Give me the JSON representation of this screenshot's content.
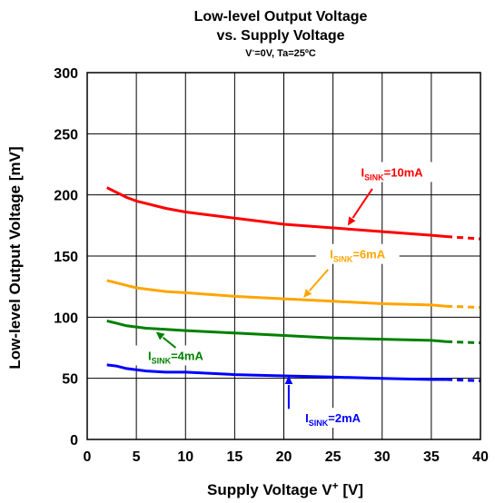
{
  "chart_data": {
    "type": "line",
    "title": "Low-level Output Voltage",
    "title_line2": "vs. Supply Voltage",
    "subtitle": {
      "base": "V",
      "sup": "-",
      "rest": "=0V, Ta=25ºC"
    },
    "xlabel": {
      "base": "Supply Voltage V",
      "sup": "+",
      "rest": " [V]"
    },
    "ylabel": "Low-level Output Voltage [mV]",
    "xlim": [
      0,
      40
    ],
    "ylim": [
      0,
      300
    ],
    "x_ticks": [
      0,
      5,
      10,
      15,
      20,
      25,
      30,
      35,
      40
    ],
    "y_ticks": [
      0,
      50,
      100,
      150,
      200,
      250,
      300
    ],
    "grid": true,
    "dashed_from_x": 36.5,
    "series": [
      {
        "label_base": "I",
        "label_sub": "SINK",
        "label_rest": "=10mA",
        "color": "#ff0000",
        "x": [
          2,
          3,
          4,
          5,
          6,
          8,
          10,
          12,
          15,
          18,
          20,
          25,
          30,
          35,
          36.5,
          40
        ],
        "values": [
          206,
          202,
          198,
          195,
          193,
          189,
          186,
          184,
          181,
          178,
          176,
          173,
          170,
          167,
          166,
          164
        ]
      },
      {
        "label_base": "I",
        "label_sub": "SINK",
        "label_rest": "=6mA",
        "color": "#ffa500",
        "x": [
          2,
          3,
          4,
          5,
          6,
          8,
          10,
          15,
          20,
          25,
          30,
          35,
          36.5,
          40
        ],
        "values": [
          130,
          128,
          126,
          124,
          123,
          121,
          120,
          117,
          115,
          113,
          111,
          110,
          109,
          108
        ]
      },
      {
        "label_base": "I",
        "label_sub": "SINK",
        "label_rest": "=4mA",
        "color": "#008000",
        "x": [
          2,
          3,
          4,
          5,
          6,
          8,
          10,
          15,
          20,
          25,
          30,
          35,
          36.5,
          40
        ],
        "values": [
          97,
          95,
          93,
          92,
          91,
          90,
          89,
          87,
          85,
          83,
          82,
          81,
          80,
          79
        ]
      },
      {
        "label_base": "I",
        "label_sub": "SINK",
        "label_rest": "=2mA",
        "color": "#0000ff",
        "x": [
          2,
          3,
          4,
          5,
          6,
          8,
          10,
          15,
          20,
          25,
          30,
          35,
          36.5,
          40
        ],
        "values": [
          61,
          60,
          58,
          57,
          56,
          55,
          55,
          53,
          52,
          51,
          50,
          49,
          49,
          48
        ]
      }
    ],
    "annotations": [
      {
        "series": 0,
        "text_x": 31,
        "text_y": 215,
        "arrow_from": [
          29,
          205
        ],
        "arrow_to": [
          26.5,
          175
        ]
      },
      {
        "series": 1,
        "text_x": 27.5,
        "text_y": 148,
        "arrow_from": [
          24.5,
          139
        ],
        "arrow_to": [
          22,
          116
        ]
      },
      {
        "series": 2,
        "text_x": 9,
        "text_y": 65,
        "arrow_from": [
          9,
          75
        ],
        "arrow_to": [
          7,
          88
        ]
      },
      {
        "series": 3,
        "text_x": 25,
        "text_y": 14,
        "arrow_from": [
          20.5,
          25
        ],
        "arrow_to": [
          20.5,
          52
        ]
      }
    ]
  }
}
